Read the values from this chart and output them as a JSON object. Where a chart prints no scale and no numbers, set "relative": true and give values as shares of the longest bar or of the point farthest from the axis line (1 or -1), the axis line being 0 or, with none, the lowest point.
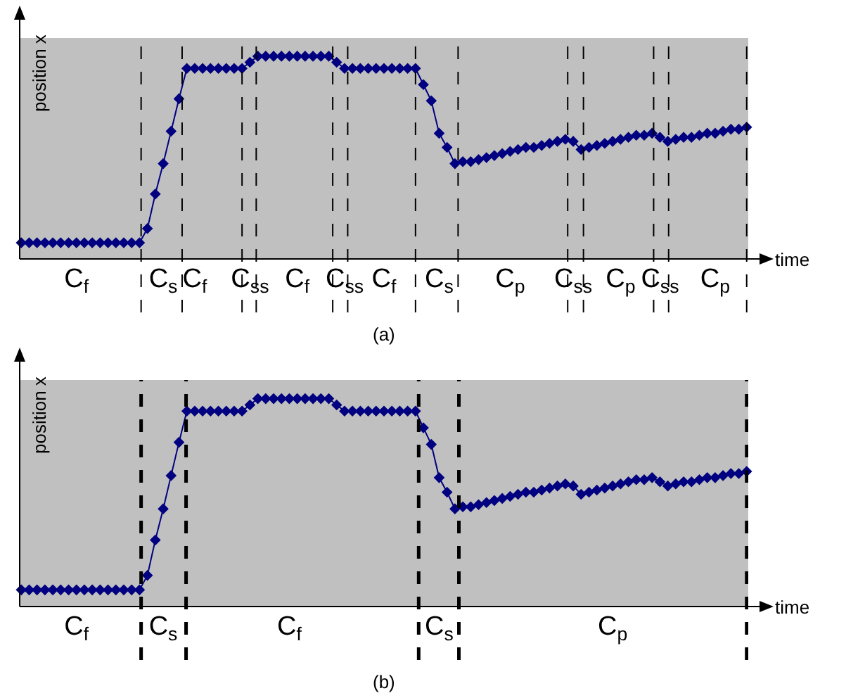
{
  "chart_data": [
    {
      "type": "line",
      "title": "(a)",
      "xlabel": "time",
      "ylabel": "position x",
      "relative": true,
      "tick_labels": "x",
      "marker": "diamond",
      "color": "#000080",
      "categories": [
        null,
        null,
        null,
        null,
        null,
        null,
        null,
        "C$_{f}$",
        null,
        null,
        null,
        null,
        null,
        null,
        null,
        null,
        null,
        null,
        "C$_{s}$",
        null,
        null,
        null,
        "C$_{f}$",
        null,
        null,
        null,
        null,
        null,
        null,
        "C$_{ss}$",
        null,
        null,
        null,
        null,
        null,
        "C$_{f}$",
        null,
        null,
        null,
        null,
        null,
        "C$_{ss}$",
        null,
        null,
        null,
        null,
        "C$_{f}$",
        null,
        null,
        null,
        null,
        null,
        null,
        "C$_{s}$",
        null,
        null,
        null,
        null,
        null,
        null,
        null,
        null,
        "C$_{p}$",
        null,
        null,
        null,
        null,
        null,
        null,
        null,
        "C$_{ss}$",
        null,
        null,
        null,
        null,
        null,
        "C$_{p}$",
        null,
        null,
        null,
        null,
        "C$_{ss}$",
        null,
        null,
        null,
        null,
        null,
        null,
        "C$_{p}$",
        null,
        null,
        null,
        null
      ],
      "values": [
        0.08,
        0.08,
        0.08,
        0.08,
        0.08,
        0.08,
        0.08,
        0.08,
        0.08,
        0.08,
        0.08,
        0.08,
        0.08,
        0.08,
        0.08,
        0.08,
        0.15,
        0.32,
        0.47,
        0.63,
        0.79,
        0.94,
        0.94,
        0.94,
        0.94,
        0.94,
        0.94,
        0.94,
        0.94,
        0.97,
        1,
        1,
        1,
        1,
        1,
        1,
        1,
        1,
        1,
        1,
        0.97,
        0.94,
        0.94,
        0.94,
        0.94,
        0.94,
        0.94,
        0.94,
        0.94,
        0.94,
        0.94,
        0.86,
        0.78,
        0.62,
        0.55,
        0.47,
        0.48,
        0.48,
        0.49,
        0.5,
        0.51,
        0.52,
        0.53,
        0.54,
        0.55,
        0.55,
        0.56,
        0.57,
        0.58,
        0.59,
        0.58,
        0.54,
        0.55,
        0.56,
        0.57,
        0.58,
        0.59,
        0.6,
        0.61,
        0.61,
        0.62,
        0.6,
        0.58,
        0.59,
        0.6,
        0.6,
        0.61,
        0.62,
        0.62,
        0.63,
        0.64,
        0.64,
        0.65
      ]
    },
    {
      "type": "line",
      "title": "(b)",
      "xlabel": "time",
      "ylabel": "position x",
      "relative": true,
      "tick_labels": "x",
      "marker": "diamond",
      "color": "#000080",
      "categories": [
        null,
        null,
        null,
        null,
        null,
        null,
        null,
        "C$_{f}$",
        null,
        null,
        null,
        null,
        null,
        null,
        null,
        null,
        null,
        null,
        "C$_{s}$",
        null,
        null,
        null,
        null,
        null,
        null,
        null,
        null,
        null,
        null,
        null,
        null,
        null,
        null,
        null,
        "C$_{f}$",
        null,
        null,
        null,
        null,
        null,
        null,
        null,
        null,
        null,
        null,
        null,
        null,
        null,
        null,
        null,
        null,
        null,
        null,
        "C$_{s}$",
        null,
        null,
        null,
        null,
        null,
        null,
        null,
        null,
        null,
        null,
        null,
        null,
        null,
        null,
        null,
        null,
        null,
        null,
        null,
        null,
        null,
        "C$_{p}$",
        null,
        null,
        null,
        null,
        null,
        null,
        null,
        null,
        null,
        null,
        null,
        null,
        null,
        null,
        null,
        null,
        null
      ],
      "values": [
        0.08,
        0.08,
        0.08,
        0.08,
        0.08,
        0.08,
        0.08,
        0.08,
        0.08,
        0.08,
        0.08,
        0.08,
        0.08,
        0.08,
        0.08,
        0.08,
        0.15,
        0.32,
        0.47,
        0.63,
        0.79,
        0.94,
        0.94,
        0.94,
        0.94,
        0.94,
        0.94,
        0.94,
        0.94,
        0.97,
        1,
        1,
        1,
        1,
        1,
        1,
        1,
        1,
        1,
        1,
        0.97,
        0.94,
        0.94,
        0.94,
        0.94,
        0.94,
        0.94,
        0.94,
        0.94,
        0.94,
        0.94,
        0.86,
        0.78,
        0.62,
        0.55,
        0.47,
        0.48,
        0.48,
        0.49,
        0.5,
        0.51,
        0.52,
        0.53,
        0.54,
        0.55,
        0.55,
        0.56,
        0.57,
        0.58,
        0.59,
        0.58,
        0.54,
        0.55,
        0.56,
        0.57,
        0.58,
        0.59,
        0.6,
        0.61,
        0.61,
        0.62,
        0.6,
        0.58,
        0.59,
        0.6,
        0.6,
        0.61,
        0.62,
        0.62,
        0.63,
        0.64,
        0.64,
        0.65
      ]
    }
  ]
}
